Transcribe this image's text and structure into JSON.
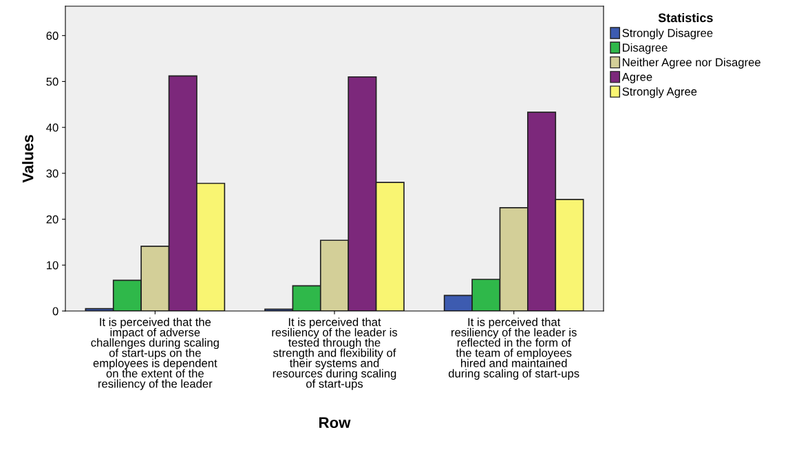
{
  "chart_data": {
    "type": "bar",
    "xlabel": "Row",
    "ylabel": "Values",
    "legend_title": "Statistics",
    "legend": "right",
    "categories": [
      "It is perceived that the\nimpact of adverse\nchallenges during scaling\nof start-ups on the\nemployees is dependent\non the extent of the\nresiliency of the leader",
      "It is perceived that\nresiliency of the leader is\ntested through the\nstrength and flexibility of\ntheir systems and\nresources during scaling\nof start-ups",
      "It is perceived that\nresiliency of the leader is\nreflected in the form of\nthe team of employees\nhired and maintained\nduring scaling of start-ups"
    ],
    "series": [
      {
        "name": "Strongly Disagree",
        "color": "#3d5bb0",
        "values": [
          0.5,
          0.4,
          3.4
        ]
      },
      {
        "name": "Disagree",
        "color": "#2fb84a",
        "values": [
          6.7,
          5.5,
          6.9
        ]
      },
      {
        "name": "Neither Agree nor Disagree",
        "color": "#d3cf98",
        "values": [
          14.1,
          15.4,
          22.5
        ]
      },
      {
        "name": "Agree",
        "color": "#7c287b",
        "values": [
          51.2,
          51.0,
          43.3
        ]
      },
      {
        "name": "Strongly Agree",
        "color": "#f9f572",
        "values": [
          27.8,
          28.0,
          24.3
        ]
      }
    ],
    "ylim": [
      0,
      66.4
    ],
    "yticks": [
      0,
      10,
      20,
      30,
      40,
      50,
      60
    ],
    "grid": false
  }
}
